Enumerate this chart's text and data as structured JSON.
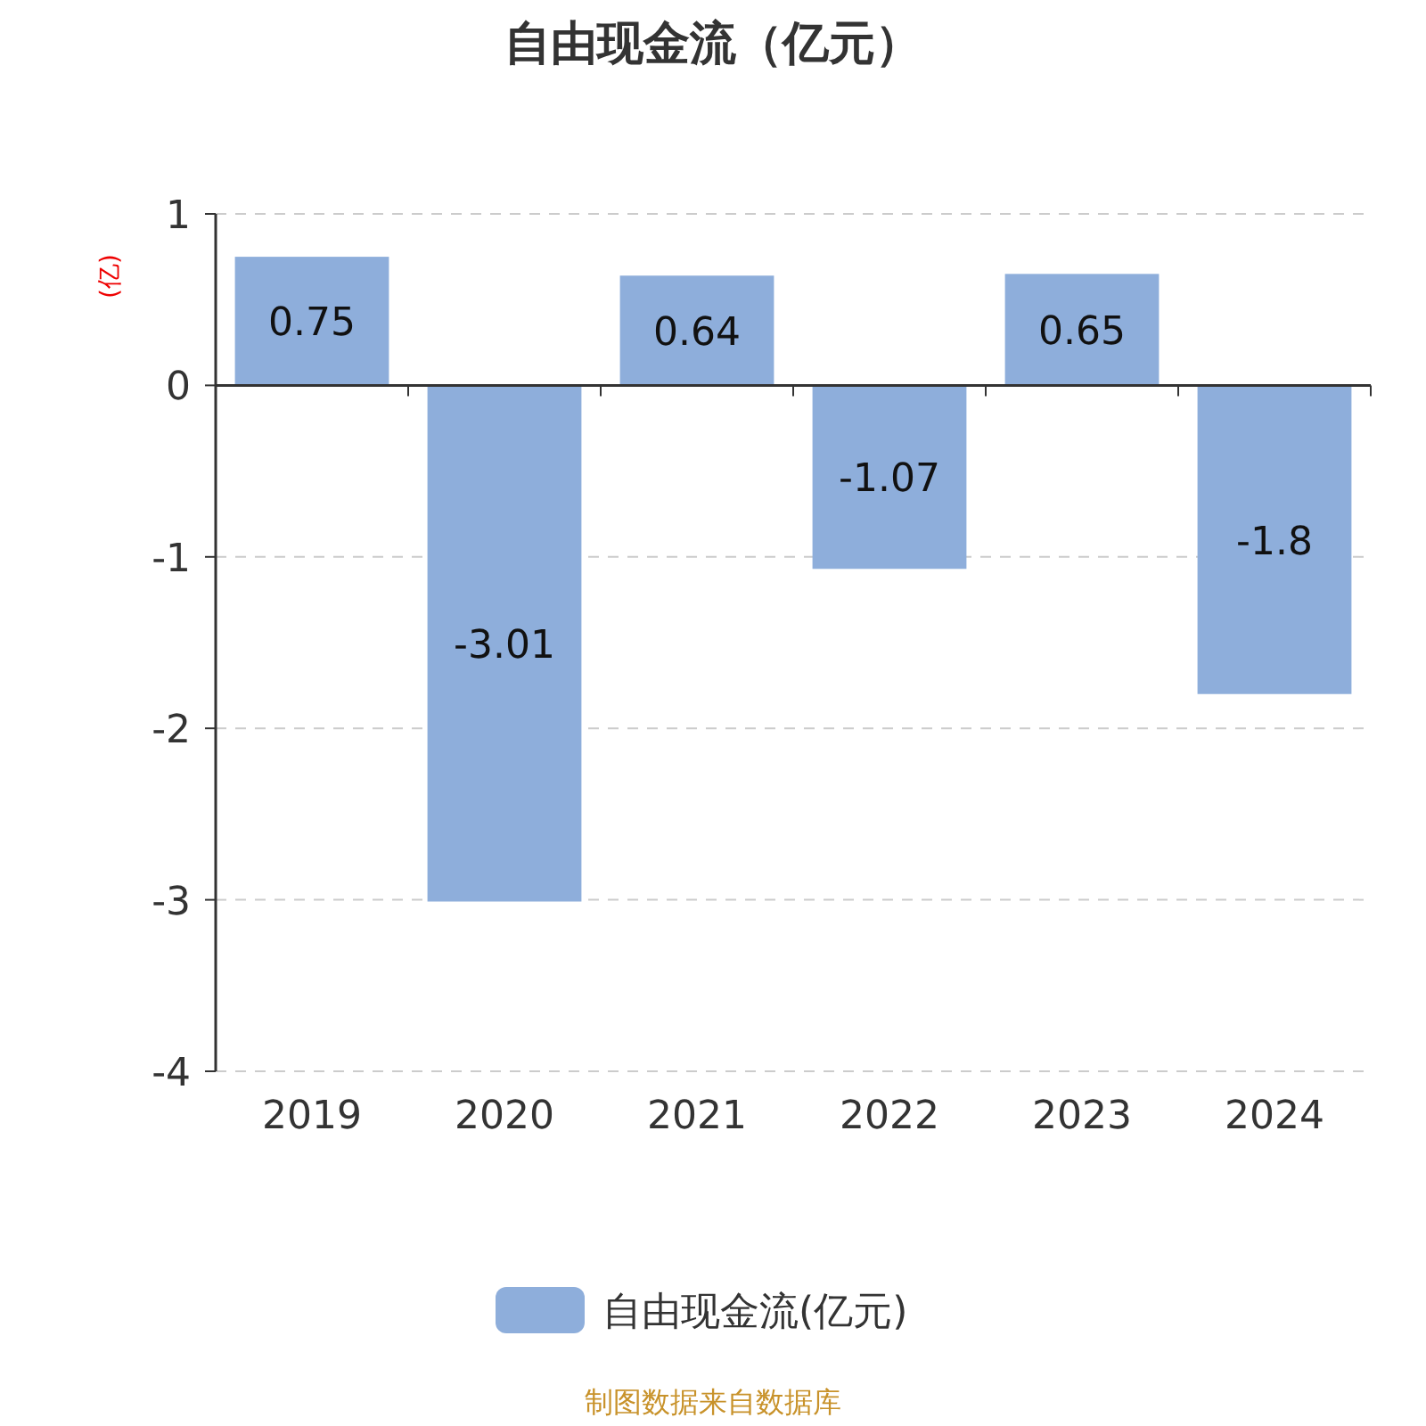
{
  "chart_data": {
    "type": "bar",
    "title": "自由现金流（亿元）",
    "ylabel": "(亿)",
    "categories": [
      "2019",
      "2020",
      "2021",
      "2022",
      "2023",
      "2024"
    ],
    "series": [
      {
        "name": "自由现金流(亿元)",
        "color": "#8eaedb",
        "values": [
          0.75,
          -3.01,
          0.64,
          -1.07,
          0.65,
          -1.8
        ]
      }
    ],
    "ylim": [
      -4,
      1
    ],
    "yticks": [
      -4,
      -3,
      -2,
      -1,
      0,
      1
    ],
    "grid": "y",
    "legend": "bottom",
    "data_labels": true,
    "annotations": [
      "制图数据来自数据库"
    ]
  }
}
